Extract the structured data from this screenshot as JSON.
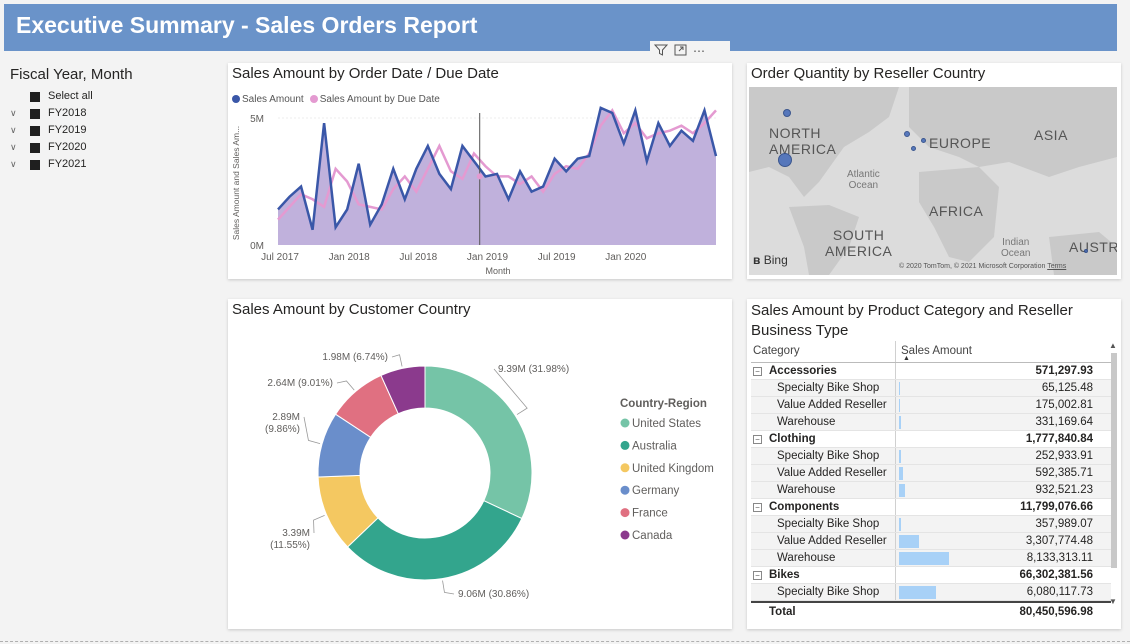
{
  "header": {
    "title": "Executive Summary - Sales Orders Report"
  },
  "slicer": {
    "title": "Fiscal Year, Month",
    "items": [
      {
        "label": "Select all",
        "expandable": false
      },
      {
        "label": "FY2018",
        "expandable": true
      },
      {
        "label": "FY2019",
        "expandable": true
      },
      {
        "label": "FY2020",
        "expandable": true
      },
      {
        "label": "FY2021",
        "expandable": true
      }
    ]
  },
  "toolbar": {
    "filter_icon": "filter-icon",
    "focus_icon": "focus-mode-icon",
    "more_label": "⋯"
  },
  "line_card": {
    "title": "Sales Amount by Order Date / Due Date",
    "legend": [
      {
        "label": "Sales Amount",
        "color": "#3a57a8"
      },
      {
        "label": "Sales Amount by Due Date",
        "color": "#e49ad1"
      }
    ]
  },
  "map_card": {
    "title": "Order Quantity by Reseller Country",
    "labels": {
      "north_america": "NORTH\nAMERICA",
      "europe": "EUROPE",
      "asia": "ASIA",
      "africa": "AFRICA",
      "south_america": "SOUTH\nAMERICA",
      "austr": "AUSTR",
      "atlantic": "Atlantic\nOcean",
      "indian": "Indian\nOcean"
    },
    "bing": "Bing",
    "copyright": "© 2020 TomTom, © 2021 Microsoft Corporation",
    "terms": "Terms"
  },
  "donut_card": {
    "title": "Sales Amount by Customer Country",
    "legend_title": "Country-Region"
  },
  "matrix_card": {
    "title_line1": "Sales Amount by Product Category and Reseller",
    "title_line2": "Business Type",
    "col1": "Category",
    "col2": "Sales Amount",
    "total_label": "Total",
    "total_value": "80,450,596.98",
    "max_bar_value": 8133313.11,
    "rows": [
      {
        "type": "group",
        "label": "Accessories",
        "value": "571,297.93"
      },
      {
        "type": "sub",
        "label": "Specialty Bike Shop",
        "value": "65,125.48",
        "num": 65125.48
      },
      {
        "type": "sub",
        "label": "Value Added Reseller",
        "value": "175,002.81",
        "num": 175002.81
      },
      {
        "type": "sub",
        "label": "Warehouse",
        "value": "331,169.64",
        "num": 331169.64
      },
      {
        "type": "group",
        "label": "Clothing",
        "value": "1,777,840.84"
      },
      {
        "type": "sub",
        "label": "Specialty Bike Shop",
        "value": "252,933.91",
        "num": 252933.91
      },
      {
        "type": "sub",
        "label": "Value Added Reseller",
        "value": "592,385.71",
        "num": 592385.71
      },
      {
        "type": "sub",
        "label": "Warehouse",
        "value": "932,521.23",
        "num": 932521.23
      },
      {
        "type": "group",
        "label": "Components",
        "value": "11,799,076.66"
      },
      {
        "type": "sub",
        "label": "Specialty Bike Shop",
        "value": "357,989.07",
        "num": 357989.07
      },
      {
        "type": "sub",
        "label": "Value Added Reseller",
        "value": "3,307,774.48",
        "num": 3307774.48
      },
      {
        "type": "sub",
        "label": "Warehouse",
        "value": "8,133,313.11",
        "num": 8133313.11
      },
      {
        "type": "group",
        "label": "Bikes",
        "value": "66,302,381.56"
      },
      {
        "type": "sub",
        "label": "Specialty Bike Shop",
        "value": "6,080,117.73",
        "num": 6080117.73
      }
    ]
  },
  "chart_data": [
    {
      "type": "area",
      "title": "Sales Amount by Order Date / Due Date",
      "xlabel": "Month",
      "ylabel": "Sales Amount and Sales Am...",
      "y_ticks": [
        "0M",
        "5M"
      ],
      "ylim": [
        0,
        5000000
      ],
      "x_ticks": [
        "Jul 2017",
        "Jan 2018",
        "Jul 2018",
        "Jan 2019",
        "Jul 2019",
        "Jan 2020"
      ],
      "x_start": "2017-07",
      "series": [
        {
          "name": "Sales Amount",
          "color": "#3a57a8",
          "values": [
            1400000,
            1900000,
            2300000,
            600000,
            4800000,
            700000,
            1400000,
            3200000,
            800000,
            1600000,
            3000000,
            1800000,
            3000000,
            3900000,
            2800000,
            2200000,
            3900000,
            3300000,
            2700000,
            2800000,
            1800000,
            2900000,
            2100000,
            2300000,
            3400000,
            2900000,
            3400000,
            3500000,
            5400000,
            5200000,
            4000000,
            5300000,
            3300000,
            4800000,
            3900000,
            4500000,
            4100000,
            5300000,
            3500000
          ]
        },
        {
          "name": "Sales Amount by Due Date",
          "color": "#e49ad1",
          "values": [
            1000000,
            1500000,
            2000000,
            1800000,
            1500000,
            3000000,
            2500000,
            1600000,
            1500000,
            1400000,
            2200000,
            2700000,
            2100000,
            3000000,
            3900000,
            2900000,
            2600000,
            3600000,
            3100000,
            2700000,
            2700000,
            2400000,
            2700000,
            2100000,
            2800000,
            3100000,
            3000000,
            3600000,
            4700000,
            5300000,
            4400000,
            4800000,
            4200000,
            4400000,
            4500000,
            4700000,
            4400000,
            4800000,
            5300000
          ]
        }
      ]
    },
    {
      "type": "pie",
      "title": "Sales Amount by Customer Country",
      "legend_title": "Country-Region",
      "categories": [
        "United States",
        "Australia",
        "United Kingdom",
        "Germany",
        "France",
        "Canada"
      ],
      "values": [
        9.39,
        9.06,
        3.39,
        2.89,
        2.64,
        1.98
      ],
      "value_labels": [
        "9.39M (31.98%)",
        "9.06M (30.86%)",
        "3.39M\n(11.55%)",
        "2.89M\n(9.86%)",
        "2.64M (9.01%)",
        "1.98M (6.74%)"
      ],
      "colors": [
        "#75c4a7",
        "#33a58d",
        "#f4c861",
        "#6a8ecb",
        "#e07081",
        "#8b3a8d"
      ],
      "legend_position": "right"
    },
    {
      "type": "scatter",
      "title": "Order Quantity by Reseller Country",
      "categories": [
        "United States",
        "Canada",
        "United Kingdom",
        "France",
        "Germany",
        "Australia"
      ],
      "sizes": [
        3,
        2,
        1,
        1,
        1,
        1
      ]
    }
  ]
}
